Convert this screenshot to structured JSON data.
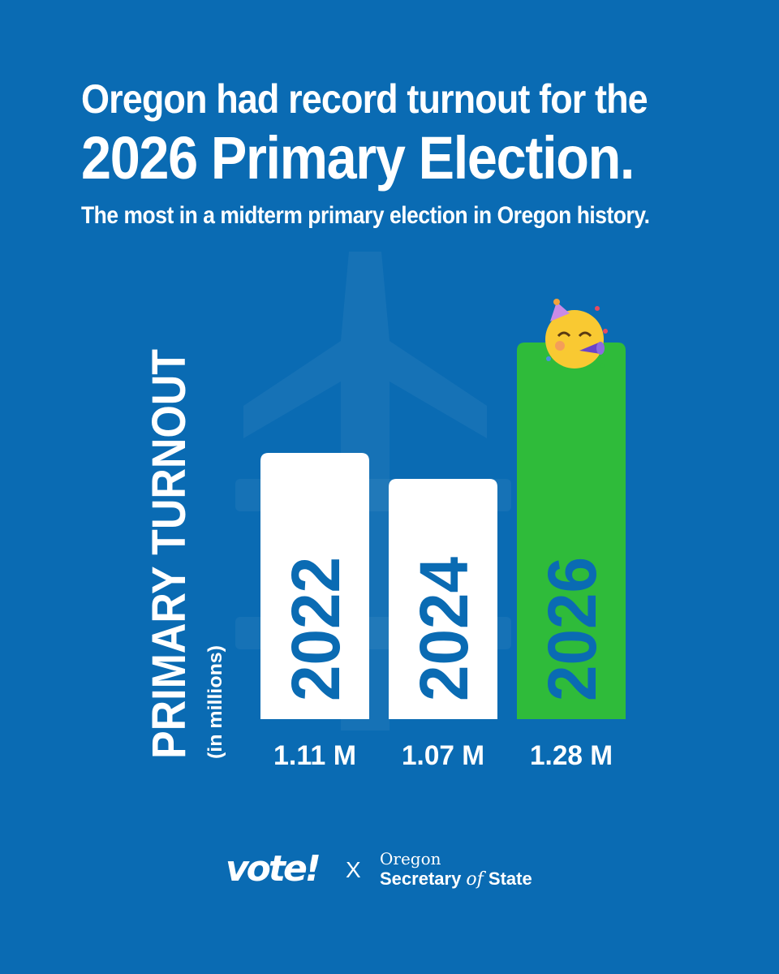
{
  "headline": {
    "line1": "Oregon had record turnout for the",
    "line2": "2026 Primary Election.",
    "subtitle": "The most in a midterm primary election in Oregon history."
  },
  "chart_data": {
    "type": "bar",
    "ylabel": "PRIMARY TURNOUT",
    "ylabel_sub": "(in millions)",
    "categories": [
      "2022",
      "2024",
      "2026"
    ],
    "values": [
      1.11,
      1.07,
      1.28
    ],
    "value_labels": [
      "1.11 M",
      "1.07 M",
      "1.28 M"
    ],
    "highlight_index": 2,
    "colors": {
      "default": "#ffffff",
      "highlight": "#2fbb3a",
      "category_text": "#0a6bb3"
    },
    "decoration": "party-face-icon",
    "grid": false,
    "legend": "none"
  },
  "footer": {
    "vote_logo": "vote!",
    "separator": "X",
    "org_line1": "Oregon",
    "org_line2_a": "Secretary ",
    "org_line2_of": "of",
    "org_line2_b": " State"
  },
  "colors": {
    "background": "#0a6bb3",
    "text": "#ffffff"
  }
}
